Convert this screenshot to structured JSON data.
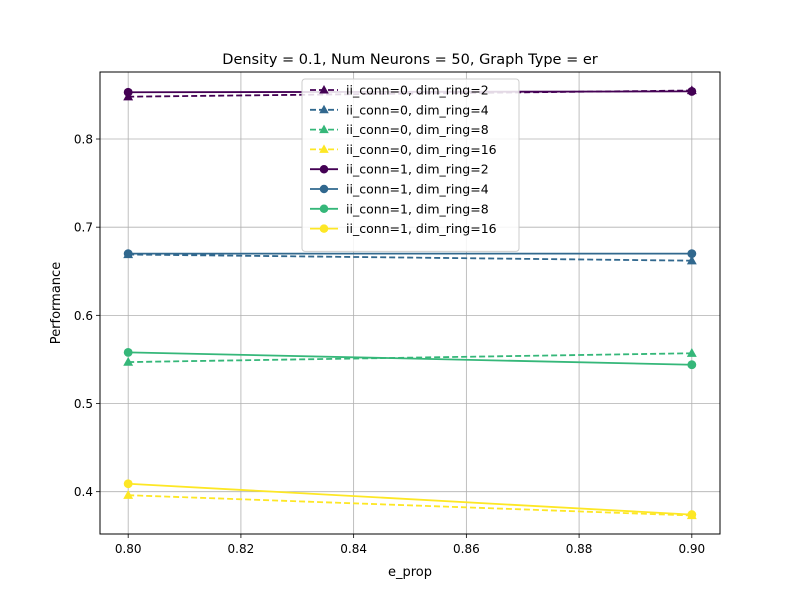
{
  "chart_data": {
    "type": "line",
    "title": "Density = 0.1, Num Neurons = 50, Graph Type = er",
    "xlabel": "e_prop",
    "ylabel": "Performance",
    "xlim": [
      0.795,
      0.905
    ],
    "ylim": [
      0.352,
      0.876
    ],
    "xticks": [
      0.8,
      0.82,
      0.84,
      0.86,
      0.88,
      0.9
    ],
    "xtick_labels": [
      "0.80",
      "0.82",
      "0.84",
      "0.86",
      "0.88",
      "0.90"
    ],
    "yticks": [
      0.4,
      0.5,
      0.6,
      0.7,
      0.8
    ],
    "ytick_labels": [
      "0.4",
      "0.5",
      "0.6",
      "0.7",
      "0.8"
    ],
    "grid": true,
    "legend_position": "top-center",
    "x": [
      0.8,
      0.9
    ],
    "series": [
      {
        "name": "ii_conn=0, dim_ring=2",
        "values": [
          0.848,
          0.855
        ],
        "color": "#440154",
        "dashed": true,
        "marker": "triangle"
      },
      {
        "name": "ii_conn=0, dim_ring=4",
        "values": [
          0.669,
          0.662
        ],
        "color": "#31688e",
        "dashed": true,
        "marker": "triangle"
      },
      {
        "name": "ii_conn=0, dim_ring=8",
        "values": [
          0.547,
          0.557
        ],
        "color": "#35b779",
        "dashed": true,
        "marker": "triangle"
      },
      {
        "name": "ii_conn=0, dim_ring=16",
        "values": [
          0.396,
          0.373
        ],
        "color": "#fde725",
        "dashed": true,
        "marker": "triangle"
      },
      {
        "name": "ii_conn=1, dim_ring=2",
        "values": [
          0.853,
          0.854
        ],
        "color": "#440154",
        "dashed": false,
        "marker": "circle"
      },
      {
        "name": "ii_conn=1, dim_ring=4",
        "values": [
          0.67,
          0.67
        ],
        "color": "#31688e",
        "dashed": false,
        "marker": "circle"
      },
      {
        "name": "ii_conn=1, dim_ring=8",
        "values": [
          0.558,
          0.544
        ],
        "color": "#35b779",
        "dashed": false,
        "marker": "circle"
      },
      {
        "name": "ii_conn=1, dim_ring=16",
        "values": [
          0.409,
          0.374
        ],
        "color": "#fde725",
        "dashed": false,
        "marker": "circle"
      }
    ]
  }
}
